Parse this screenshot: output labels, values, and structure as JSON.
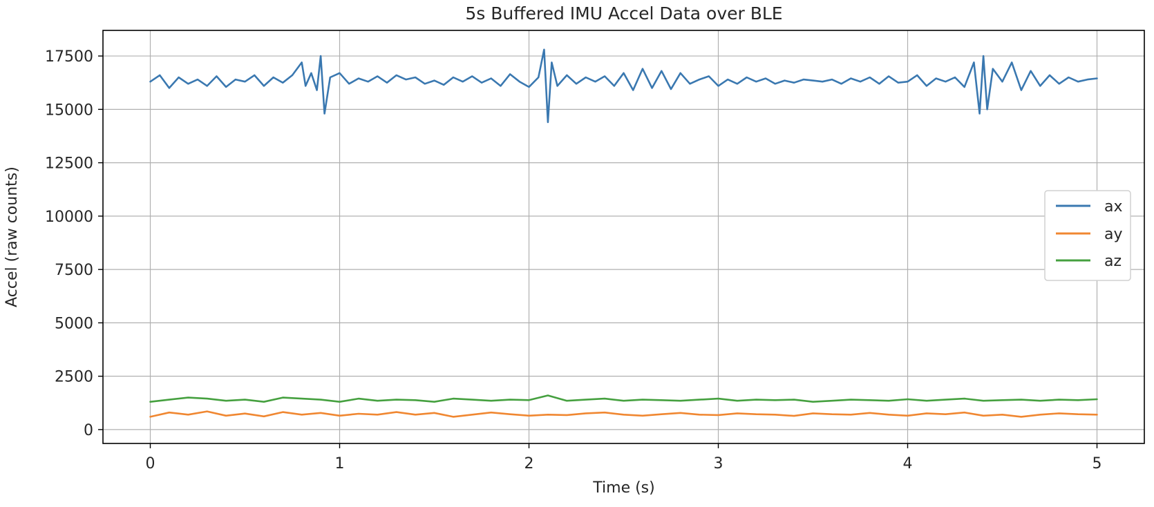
{
  "chart_data": {
    "type": "line",
    "title": "5s Buffered IMU Accel Data over BLE",
    "xlabel": "Time (s)",
    "ylabel": "Accel (raw counts)",
    "xlim": [
      -0.25,
      5.25
    ],
    "ylim": [
      -650,
      18700
    ],
    "x_ticks": [
      0,
      1,
      2,
      3,
      4,
      5
    ],
    "y_ticks": [
      0,
      2500,
      5000,
      7500,
      10000,
      12500,
      15000,
      17500
    ],
    "grid": true,
    "legend_position": "center-right",
    "colors": {
      "ax": "#3a78b0",
      "ay": "#f08731",
      "az": "#45a03f",
      "grid": "#b0b0b0",
      "axes": "#000000",
      "text": "#262626"
    },
    "series": [
      {
        "name": "ax",
        "x": [
          0.0,
          0.05,
          0.1,
          0.15,
          0.2,
          0.25,
          0.3,
          0.35,
          0.4,
          0.45,
          0.5,
          0.55,
          0.6,
          0.65,
          0.7,
          0.75,
          0.8,
          0.82,
          0.85,
          0.88,
          0.9,
          0.92,
          0.95,
          1.0,
          1.05,
          1.1,
          1.15,
          1.2,
          1.25,
          1.3,
          1.35,
          1.4,
          1.45,
          1.5,
          1.55,
          1.6,
          1.65,
          1.7,
          1.75,
          1.8,
          1.85,
          1.9,
          1.95,
          2.0,
          2.05,
          2.08,
          2.1,
          2.12,
          2.15,
          2.2,
          2.25,
          2.3,
          2.35,
          2.4,
          2.45,
          2.5,
          2.55,
          2.6,
          2.65,
          2.7,
          2.75,
          2.8,
          2.85,
          2.9,
          2.95,
          3.0,
          3.05,
          3.1,
          3.15,
          3.2,
          3.25,
          3.3,
          3.35,
          3.4,
          3.45,
          3.5,
          3.55,
          3.6,
          3.65,
          3.7,
          3.75,
          3.8,
          3.85,
          3.9,
          3.95,
          4.0,
          4.05,
          4.1,
          4.15,
          4.2,
          4.25,
          4.3,
          4.35,
          4.38,
          4.4,
          4.42,
          4.45,
          4.5,
          4.55,
          4.6,
          4.65,
          4.7,
          4.75,
          4.8,
          4.85,
          4.9,
          4.95,
          5.0
        ],
        "values": [
          16300,
          16600,
          16000,
          16500,
          16200,
          16400,
          16100,
          16550,
          16050,
          16400,
          16300,
          16600,
          16100,
          16500,
          16250,
          16600,
          17200,
          16100,
          16700,
          15900,
          17500,
          14800,
          16500,
          16700,
          16200,
          16450,
          16300,
          16550,
          16250,
          16600,
          16400,
          16500,
          16200,
          16350,
          16150,
          16500,
          16300,
          16550,
          16250,
          16450,
          16100,
          16650,
          16300,
          16050,
          16500,
          17800,
          14400,
          17200,
          16100,
          16600,
          16200,
          16500,
          16300,
          16550,
          16100,
          16700,
          15900,
          16900,
          16000,
          16800,
          15950,
          16700,
          16200,
          16400,
          16550,
          16100,
          16400,
          16200,
          16500,
          16300,
          16450,
          16200,
          16350,
          16250,
          16400,
          16350,
          16300,
          16400,
          16200,
          16450,
          16300,
          16500,
          16200,
          16550,
          16250,
          16300,
          16600,
          16100,
          16450,
          16300,
          16500,
          16050,
          17200,
          14800,
          17500,
          15000,
          16900,
          16300,
          17200,
          15900,
          16800,
          16100,
          16600,
          16200,
          16500,
          16300,
          16400,
          16450
        ]
      },
      {
        "name": "ay",
        "x": [
          0.0,
          0.1,
          0.2,
          0.3,
          0.4,
          0.5,
          0.6,
          0.7,
          0.8,
          0.9,
          1.0,
          1.1,
          1.2,
          1.3,
          1.4,
          1.5,
          1.6,
          1.7,
          1.8,
          1.9,
          2.0,
          2.1,
          2.2,
          2.3,
          2.4,
          2.5,
          2.6,
          2.7,
          2.8,
          2.9,
          3.0,
          3.1,
          3.2,
          3.3,
          3.4,
          3.5,
          3.6,
          3.7,
          3.8,
          3.9,
          4.0,
          4.1,
          4.2,
          4.3,
          4.4,
          4.5,
          4.6,
          4.7,
          4.8,
          4.9,
          5.0
        ],
        "values": [
          600,
          800,
          700,
          850,
          650,
          750,
          620,
          820,
          700,
          780,
          650,
          740,
          700,
          820,
          700,
          780,
          600,
          700,
          800,
          720,
          650,
          700,
          680,
          760,
          800,
          700,
          650,
          720,
          780,
          700,
          680,
          760,
          720,
          700,
          640,
          760,
          720,
          700,
          780,
          700,
          650,
          760,
          720,
          800,
          650,
          700,
          600,
          700,
          760,
          720,
          700
        ]
      },
      {
        "name": "az",
        "x": [
          0.0,
          0.1,
          0.2,
          0.3,
          0.4,
          0.5,
          0.6,
          0.7,
          0.8,
          0.9,
          1.0,
          1.1,
          1.2,
          1.3,
          1.4,
          1.5,
          1.6,
          1.7,
          1.8,
          1.9,
          2.0,
          2.1,
          2.2,
          2.3,
          2.4,
          2.5,
          2.6,
          2.7,
          2.8,
          2.9,
          3.0,
          3.1,
          3.2,
          3.3,
          3.4,
          3.5,
          3.6,
          3.7,
          3.8,
          3.9,
          4.0,
          4.1,
          4.2,
          4.3,
          4.4,
          4.5,
          4.6,
          4.7,
          4.8,
          4.9,
          5.0
        ],
        "values": [
          1300,
          1400,
          1500,
          1450,
          1350,
          1400,
          1300,
          1500,
          1450,
          1400,
          1300,
          1450,
          1350,
          1400,
          1380,
          1300,
          1450,
          1400,
          1350,
          1400,
          1380,
          1600,
          1350,
          1400,
          1450,
          1350,
          1400,
          1380,
          1350,
          1400,
          1450,
          1350,
          1400,
          1380,
          1400,
          1300,
          1350,
          1400,
          1380,
          1350,
          1420,
          1350,
          1400,
          1450,
          1350,
          1380,
          1400,
          1350,
          1400,
          1380,
          1420
        ]
      }
    ]
  }
}
